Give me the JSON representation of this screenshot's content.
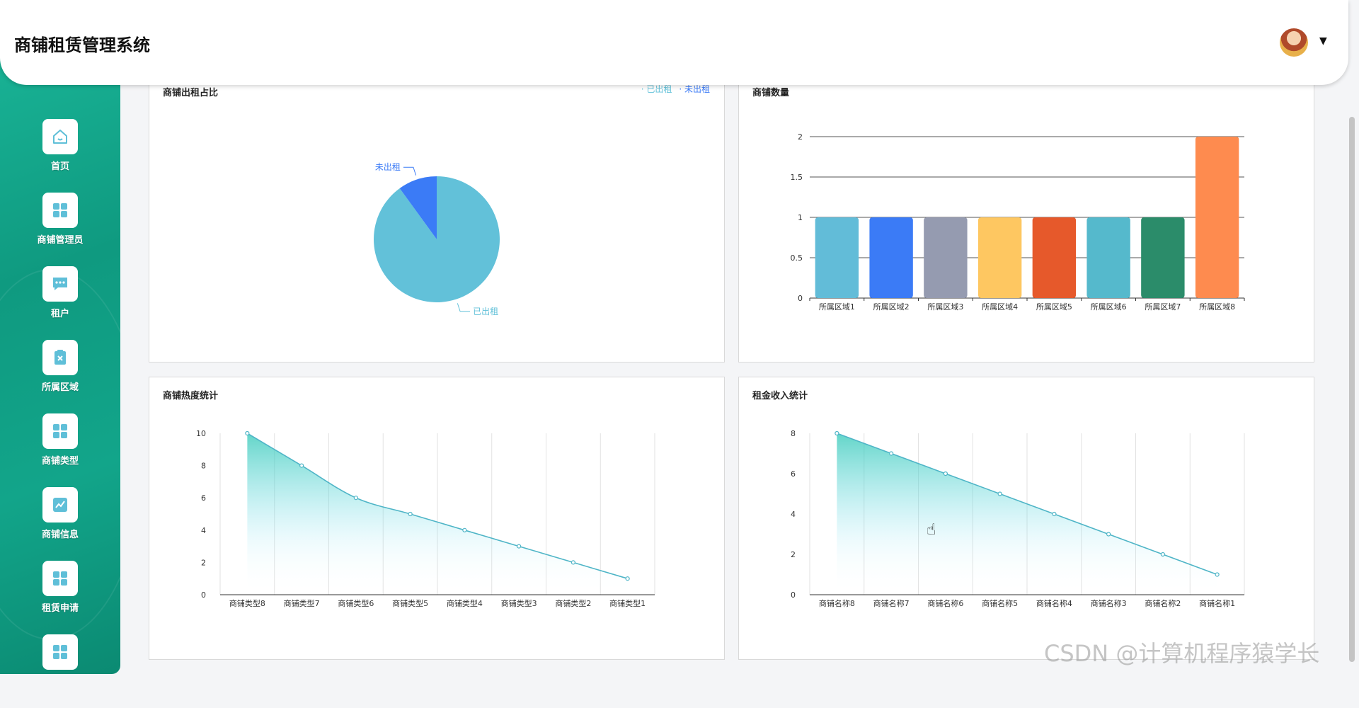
{
  "app": {
    "title": "商铺租赁管理系统"
  },
  "sidebar": {
    "items": [
      {
        "label": "首页",
        "icon": "home-icon"
      },
      {
        "label": "商铺管理员",
        "icon": "grid-icon"
      },
      {
        "label": "租户",
        "icon": "chat-icon"
      },
      {
        "label": "所属区域",
        "icon": "clipboard-icon"
      },
      {
        "label": "商铺类型",
        "icon": "grid-icon"
      },
      {
        "label": "商铺信息",
        "icon": "chart-icon"
      },
      {
        "label": "租赁申请",
        "icon": "grid-icon"
      },
      {
        "label": "",
        "icon": "grid-icon"
      }
    ]
  },
  "colors": {
    "sidebar": "#12a58a",
    "accent": "#5fbfd8",
    "pie_rented": "#62c1d9",
    "pie_unrented": "#3b7bf6",
    "line": "#4fb5c7"
  },
  "watermark": "CSDN @计算机程序猿学长",
  "panels": {
    "pie": {
      "title": "商铺出租占比"
    },
    "bar": {
      "title": "商铺数量"
    },
    "line1": {
      "title": "商铺热度统计"
    },
    "line2": {
      "title": "租金收入统计"
    }
  },
  "chart_data": [
    {
      "type": "pie",
      "title": "商铺出租占比",
      "legend": [
        "已出租",
        "未出租"
      ],
      "legend_position": "top-right",
      "slices": [
        {
          "name": "已出租",
          "value": 9,
          "color": "#62c1d9"
        },
        {
          "name": "未出租",
          "value": 1,
          "color": "#3b7bf6"
        }
      ]
    },
    {
      "type": "bar",
      "title": "商铺数量",
      "categories": [
        "所属区域1",
        "所属区域2",
        "所属区域3",
        "所属区域4",
        "所属区域5",
        "所属区域6",
        "所属区域7",
        "所属区域8"
      ],
      "values": [
        1,
        1,
        1,
        1,
        1,
        1,
        1,
        2
      ],
      "colors": [
        "#62bcd8",
        "#3b7bf6",
        "#959bb0",
        "#fec761",
        "#e6592b",
        "#55b9cc",
        "#2b8c6a",
        "#fe8b4f"
      ],
      "yticks": [
        "0",
        "0.5",
        "1",
        "1.5",
        "2"
      ],
      "ylim": [
        0,
        2
      ],
      "grid": true
    },
    {
      "type": "area",
      "title": "商铺热度统计",
      "categories": [
        "商铺类型8",
        "商铺类型7",
        "商铺类型6",
        "商铺类型5",
        "商铺类型4",
        "商铺类型3",
        "商铺类型2",
        "商铺类型1"
      ],
      "values": [
        10,
        8,
        6,
        5,
        4,
        3,
        2,
        1
      ],
      "yticks": [
        "0",
        "2",
        "4",
        "6",
        "8",
        "10"
      ],
      "ylim": [
        0,
        10
      ],
      "smooth": true,
      "grid": true
    },
    {
      "type": "area",
      "title": "租金收入统计",
      "categories": [
        "商铺名称8",
        "商铺名称7",
        "商铺名称6",
        "商铺名称5",
        "商铺名称4",
        "商铺名称3",
        "商铺名称2",
        "商铺名称1"
      ],
      "values": [
        8,
        7,
        6,
        5,
        4,
        3,
        2,
        1
      ],
      "yticks": [
        "0",
        "2",
        "4",
        "6",
        "8"
      ],
      "ylim": [
        0,
        8
      ],
      "smooth": false,
      "grid": true
    }
  ]
}
